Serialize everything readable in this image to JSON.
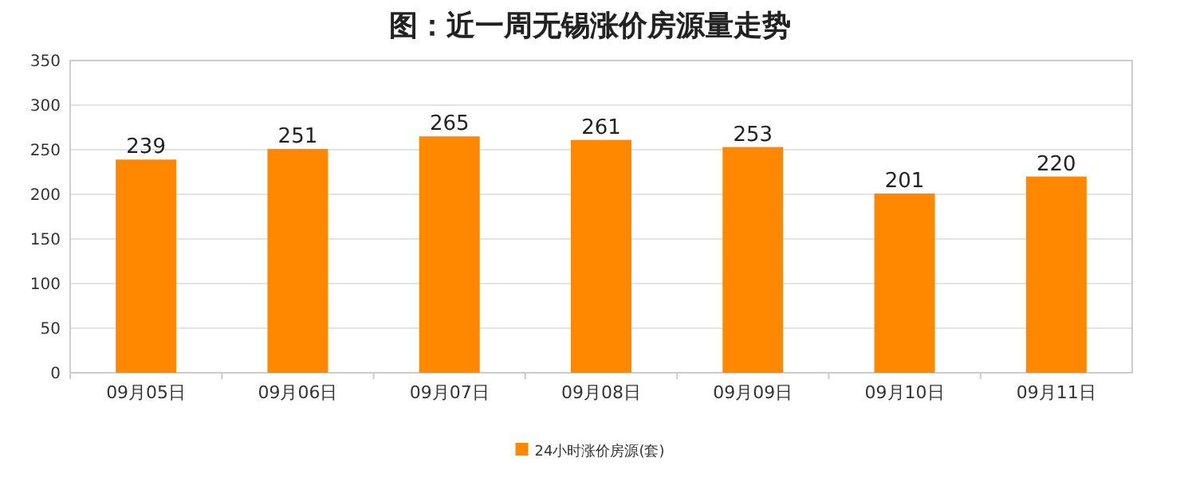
{
  "chart_data": {
    "type": "bar",
    "title": "图：近一周无锡涨价房源量走势",
    "categories": [
      "09月05日",
      "09月06日",
      "09月07日",
      "09月08日",
      "09月09日",
      "09月10日",
      "09月11日"
    ],
    "series": [
      {
        "name": "24小时涨价房源(套)",
        "color": "#ff8800",
        "values": [
          239,
          251,
          265,
          261,
          253,
          201,
          220
        ]
      }
    ],
    "ylim": [
      0,
      350
    ],
    "yticks": [
      0,
      50,
      100,
      150,
      200,
      250,
      300,
      350
    ],
    "grid": "y",
    "legend": "bottom",
    "data_labels": true
  }
}
